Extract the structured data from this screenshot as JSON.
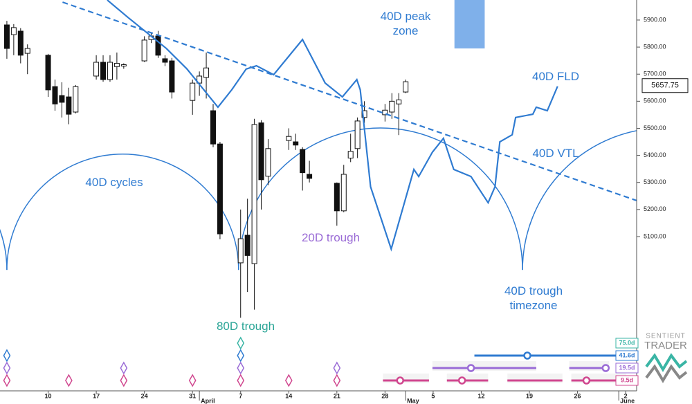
{
  "chart_data": {
    "type": "candlestick",
    "xlim": [
      0,
      92.6
    ],
    "ylim": [
      4530,
      5974
    ],
    "yticks": [
      {
        "value": 5100,
        "label": "5100.00"
      },
      {
        "value": 5200,
        "label": "5200.00"
      },
      {
        "value": 5300,
        "label": "5300.00"
      },
      {
        "value": 5400,
        "label": "5400.00"
      },
      {
        "value": 5500,
        "label": "5500.00"
      },
      {
        "value": 5600,
        "label": "5600.00"
      },
      {
        "value": 5700,
        "label": "5700.00"
      },
      {
        "value": 5800,
        "label": "5800.00"
      },
      {
        "value": 5900,
        "label": "5900.00"
      }
    ],
    "xticks": [
      {
        "value": 7,
        "label": "10"
      },
      {
        "value": 14,
        "label": "17"
      },
      {
        "value": 21,
        "label": "24"
      },
      {
        "value": 28,
        "label": "31"
      },
      {
        "value": 35,
        "label": "7"
      },
      {
        "value": 42,
        "label": "14"
      },
      {
        "value": 49,
        "label": "21"
      },
      {
        "value": 56,
        "label": "28"
      },
      {
        "value": 63,
        "label": "5"
      },
      {
        "value": 70,
        "label": "12"
      },
      {
        "value": 77,
        "label": "19"
      },
      {
        "value": 84,
        "label": "26"
      },
      {
        "value": 91,
        "label": "2"
      }
    ],
    "month_ticks": [
      {
        "value": 29,
        "label": "April"
      },
      {
        "value": 59,
        "label": "May"
      },
      {
        "value": 90,
        "label": "June"
      }
    ],
    "last_price": 5657.75,
    "candles": {
      "x": [
        1,
        2,
        3,
        4,
        7,
        8,
        9,
        10,
        11,
        14,
        15,
        16,
        17,
        18,
        21,
        22,
        23,
        24,
        25,
        28,
        29,
        30,
        31,
        32,
        35,
        36,
        37,
        38,
        39,
        42,
        43,
        44,
        45,
        49,
        50,
        51,
        52,
        53,
        56,
        57,
        58,
        59
      ],
      "open": [
        5882,
        5846,
        5859,
        5777,
        5770,
        5654,
        5621,
        5616,
        5560,
        5693,
        5744,
        5680,
        5728,
        5730,
        5749,
        5828,
        5841,
        5757,
        5749,
        5603,
        5667,
        5688,
        5565,
        5442,
        5003,
        5105,
        5000,
        5520,
        5323,
        5455,
        5450,
        5422,
        5330,
        5297,
        5195,
        5390,
        5425,
        5540,
        5550,
        5560,
        5590,
        5634
      ],
      "high": [
        5897,
        5885,
        5870,
        5810,
        5775,
        5680,
        5670,
        5650,
        5660,
        5770,
        5770,
        5770,
        5780,
        5740,
        5840,
        5850,
        5860,
        5770,
        5760,
        5680,
        5710,
        5780,
        5590,
        5450,
        5200,
        5240,
        5535,
        5530,
        5460,
        5500,
        5480,
        5430,
        5380,
        5300,
        5365,
        5480,
        5540,
        5600,
        5590,
        5630,
        5630,
        5680
      ],
      "low": [
        5757,
        5770,
        5740,
        5700,
        5616,
        5565,
        5540,
        5515,
        5555,
        5680,
        5672,
        5672,
        5680,
        5720,
        5745,
        5815,
        5760,
        5730,
        5610,
        5550,
        5620,
        5610,
        5430,
        5090,
        4800,
        4895,
        4830,
        5200,
        5290,
        5420,
        5420,
        5270,
        5300,
        5140,
        5190,
        5375,
        5390,
        5520,
        5525,
        5535,
        5475,
        5630
      ],
      "close": [
        5795,
        5872,
        5770,
        5795,
        5642,
        5590,
        5596,
        5552,
        5654,
        5744,
        5680,
        5744,
        5740,
        5735,
        5826,
        5841,
        5770,
        5744,
        5634,
        5667,
        5693,
        5723,
        5442,
        5110,
        5092,
        5030,
        5514,
        5310,
        5425,
        5470,
        5438,
        5336,
        5315,
        5195,
        5330,
        5415,
        5527,
        5565,
        5567,
        5600,
        5605,
        5672
      ]
    },
    "fld": {
      "name": "40D FLD",
      "color": "#2f7bd1",
      "x": [
        15.6,
        18.6,
        24.2,
        27.2,
        31.7,
        33.7,
        35.8,
        37.3,
        39.8,
        44.0,
        47.3,
        49.8,
        51.9,
        52.4,
        53.9,
        56.9,
        60.2,
        60.9,
        62.9,
        64.5,
        66.0,
        68.5,
        71.0,
        72.0,
        72.7,
        74.5,
        75.0,
        77.5,
        78.0,
        79.6,
        81.1
      ],
      "values": [
        5974,
        5910,
        5795,
        5719,
        5578,
        5642,
        5719,
        5731,
        5698,
        5828,
        5667,
        5616,
        5680,
        5642,
        5284,
        5054,
        5348,
        5322,
        5412,
        5463,
        5348,
        5322,
        5225,
        5284,
        5450,
        5476,
        5540,
        5552,
        5578,
        5565,
        5655
      ]
    },
    "vtl": {
      "name": "40D VTL",
      "color": "#2f7bd1",
      "x": [
        9.1,
        92.6
      ],
      "values": [
        5966,
        5233
      ]
    },
    "cycle_arcs": {
      "name": "40D cycles",
      "color": "#2f7bd1",
      "troughs": [
        -33.1,
        1.0,
        34.7,
        76.0,
        117.3
      ],
      "trough_price": 4977
    },
    "peak_zone": {
      "label": "40D peak zone",
      "color": "#7fb0ea",
      "x": [
        66.1,
        70.5
      ],
      "price": [
        5795,
        5974
      ]
    },
    "annotations": {
      "trough_20": "20D trough",
      "trough_80": "80D trough",
      "timezone": "40D trough timezone"
    },
    "cycles": [
      {
        "label": "75.0d",
        "color": "#3ab5a5",
        "troughs": [
          35
        ],
        "projections": []
      },
      {
        "label": "41.6d",
        "color": "#2f7bd1",
        "troughs": [
          1,
          35
        ],
        "projections": [
          {
            "range": [
              69.0,
              91.1
            ],
            "center": 76.7
          }
        ]
      },
      {
        "label": "19.5d",
        "color": "#9a6bd6",
        "troughs": [
          1,
          18,
          35,
          49
        ],
        "projections": [
          {
            "range": [
              62.9,
              78.0
            ],
            "center": 68.5
          },
          {
            "range": [
              82.8,
              88.6
            ],
            "center": 88.1
          }
        ]
      },
      {
        "label": "9.5d",
        "color": "#d0478f",
        "troughs": [
          1,
          10,
          18,
          28,
          35,
          42,
          49
        ],
        "projections": [
          {
            "range": [
              55.7,
              62.4
            ],
            "center": 58.2
          },
          {
            "range": [
              65.0,
              71.0
            ],
            "center": 67.2
          },
          {
            "range": [
              73.8,
              81.8
            ]
          },
          {
            "range": [
              83.1,
              91.1
            ],
            "center": 85.3
          }
        ]
      }
    ],
    "logo": {
      "top": "SENTIENT",
      "bottom": "TRADER"
    }
  }
}
